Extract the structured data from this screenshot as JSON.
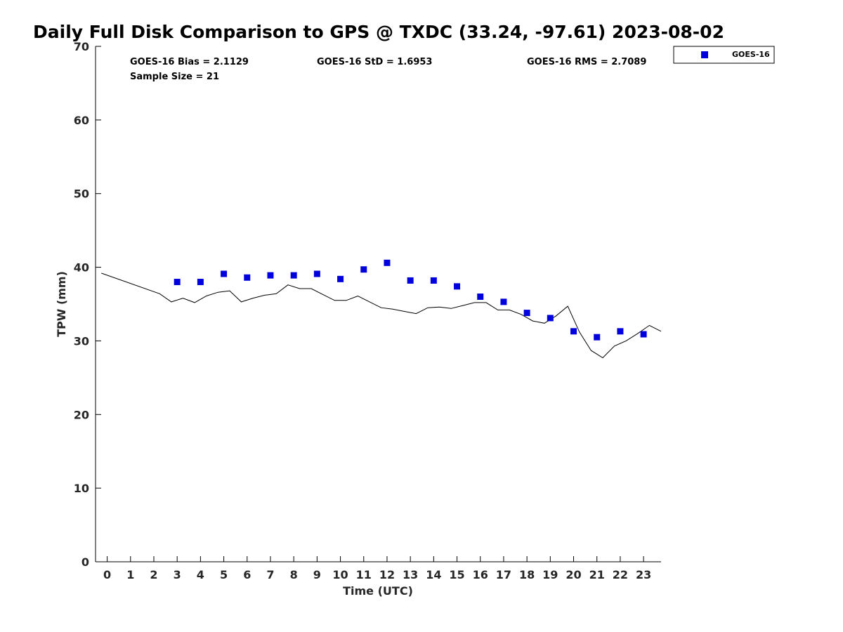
{
  "chart_data": {
    "type": "scatter",
    "title": "Daily Full Disk Comparison to GPS @ TXDC (33.24, -97.61) 2023-08-02",
    "xlabel": "Time (UTC)",
    "ylabel": "TPW (mm)",
    "xlim": [
      -0.5,
      23.75
    ],
    "ylim": [
      0,
      70
    ],
    "xticks": [
      "0",
      "1",
      "2",
      "3",
      "4",
      "5",
      "6",
      "7",
      "8",
      "9",
      "10",
      "11",
      "12",
      "13",
      "14",
      "15",
      "16",
      "17",
      "18",
      "19",
      "20",
      "21",
      "22",
      "23"
    ],
    "yticks": [
      "0",
      "10",
      "20",
      "30",
      "40",
      "50",
      "60",
      "70"
    ],
    "grid": false,
    "legend": {
      "position": "top-right",
      "entries": [
        "GOES-16"
      ]
    },
    "stats": {
      "bias": "GOES-16 Bias = 2.1129",
      "std": "GOES-16 StD = 1.6953",
      "rms": "GOES-16 RMS = 2.7089",
      "sample": "Sample Size = 21"
    },
    "series": [
      {
        "name": "GOES-16",
        "color": "#0000dd",
        "marker": "square",
        "x": [
          3,
          4,
          5,
          6,
          7,
          8,
          9,
          10,
          11,
          12,
          13,
          14,
          15,
          16,
          17,
          18,
          19,
          20,
          21,
          22,
          23
        ],
        "y": [
          38.0,
          38.0,
          39.1,
          38.6,
          38.9,
          38.9,
          39.1,
          38.4,
          39.7,
          40.6,
          38.2,
          38.2,
          37.4,
          36.0,
          35.3,
          33.8,
          33.1,
          31.3,
          30.5,
          31.3,
          30.9
        ]
      },
      {
        "color": "#000000",
        "type": "line",
        "x": [
          -0.25,
          2.25,
          2.75,
          3.25,
          3.75,
          4.25,
          4.75,
          5.25,
          5.75,
          6.25,
          6.75,
          7.25,
          7.75,
          8.25,
          8.75,
          9.25,
          9.75,
          10.25,
          10.75,
          11.25,
          11.75,
          12.25,
          12.75,
          13.25,
          13.75,
          14.25,
          14.75,
          15.25,
          15.75,
          16.25,
          16.75,
          17.25,
          17.75,
          18.25,
          18.75,
          19.25,
          19.75,
          20.25,
          20.75,
          21.25,
          21.75,
          22.25,
          22.75,
          23.25,
          23.75
        ],
        "y": [
          39.2,
          36.4,
          35.3,
          35.8,
          35.2,
          36.1,
          36.6,
          36.8,
          35.3,
          35.8,
          36.2,
          36.4,
          37.6,
          37.1,
          37.1,
          36.3,
          35.5,
          35.5,
          36.1,
          35.3,
          34.5,
          34.3,
          34.0,
          33.7,
          34.5,
          34.6,
          34.4,
          34.8,
          35.2,
          35.2,
          34.2,
          34.2,
          33.6,
          32.7,
          32.4,
          33.4,
          34.7,
          31.2,
          28.7,
          27.7,
          29.3,
          30.0,
          31.0,
          32.1,
          31.3
        ]
      }
    ]
  }
}
